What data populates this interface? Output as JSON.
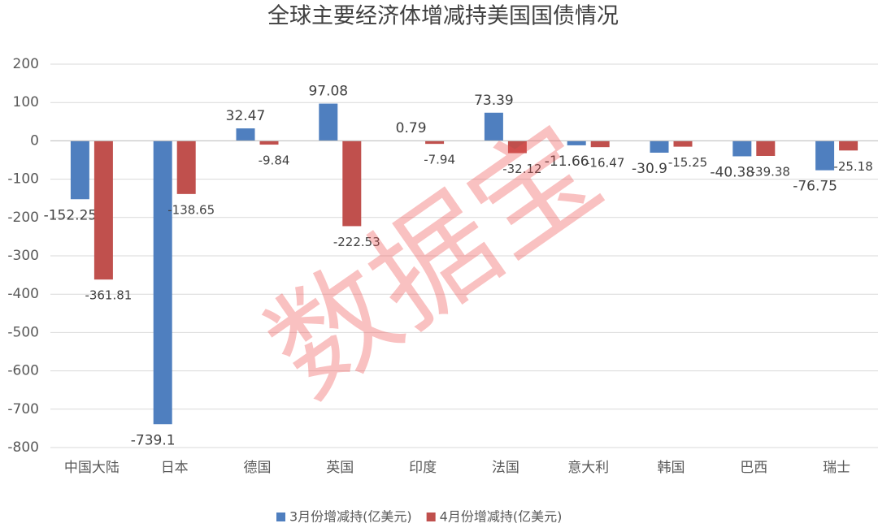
{
  "chart_data": {
    "type": "bar",
    "title": "全球主要经济体增减持美国国债情况",
    "watermark": "数据宝",
    "categories": [
      "中国大陆",
      "日本",
      "德国",
      "英国",
      "印度",
      "法国",
      "意大利",
      "韩国",
      "巴西",
      "瑞士"
    ],
    "series": [
      {
        "name": "3月份增减持(亿美元)",
        "color": "#4f7fbf",
        "values": [
          -152.25,
          -739.1,
          32.47,
          97.08,
          0.79,
          73.39,
          -11.66,
          -30.9,
          -40.38,
          -76.75
        ]
      },
      {
        "name": "4月份增减持(亿美元)",
        "color": "#c0504d",
        "values": [
          -361.81,
          -138.65,
          -9.84,
          -222.53,
          -7.94,
          -32.12,
          -16.47,
          -15.25,
          -39.38,
          -25.18
        ]
      }
    ],
    "ylim": [
      -800,
      200
    ],
    "yticks": [
      -800,
      -700,
      -600,
      -500,
      -400,
      -300,
      -200,
      -100,
      0,
      100,
      200
    ],
    "grid": true,
    "legend": "bottom"
  }
}
